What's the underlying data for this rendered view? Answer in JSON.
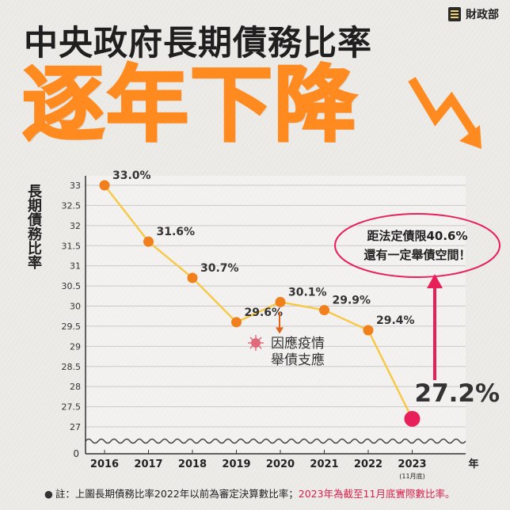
{
  "brand": {
    "name": "財政部",
    "logo_icon": "ministry-of-finance-logo"
  },
  "header": {
    "title": "中央政府長期債務比率",
    "headline": "逐年下降"
  },
  "chart_data": {
    "type": "line",
    "title": "中央政府長期債務比率",
    "ylabel": "長期債務比率",
    "xlabel": "年",
    "ylim": [
      26.7,
      33.2
    ],
    "yticks": [
      "33",
      "32.5",
      "32",
      "31.5",
      "31",
      "30.5",
      "30",
      "29.5",
      "29",
      "28.5",
      "28",
      "27.5",
      "27"
    ],
    "y_axis_break_label": "0",
    "categories": [
      "2016",
      "2017",
      "2018",
      "2019",
      "2020",
      "2021",
      "2022",
      "2023"
    ],
    "category_sublabels": {
      "2023": "(11月底)"
    },
    "series": [
      {
        "values": [
          33.0,
          31.6,
          30.7,
          29.6,
          30.1,
          29.9,
          29.4,
          27.2
        ],
        "labels": [
          "33.0%",
          "31.6%",
          "30.7%",
          "29.6%",
          "30.1%",
          "29.9%",
          "29.4%",
          "27.2%"
        ],
        "color": "#f7c948",
        "marker_color": "#f07f1c",
        "highlight_color": "#e8205a"
      }
    ],
    "annotations": [
      {
        "text_line1": "因應疫情",
        "text_line2": "舉債支應",
        "icon": "virus-icon",
        "target": "2020"
      },
      {
        "text_line1": "距法定債限40.6%",
        "text_line2": "還有一定舉債空間！",
        "target": "2023"
      }
    ],
    "grid": true
  },
  "footnote": {
    "main": "註：上圖長期債務比率2022年以前為審定決算數比率；",
    "highlight": "2023年為截至11月底實際數比率。"
  },
  "colors": {
    "accent": "#ff8a1f",
    "line": "#f7c948",
    "marker": "#f07f1c",
    "highlight": "#e8205a",
    "grid": "#c9c9c9"
  }
}
